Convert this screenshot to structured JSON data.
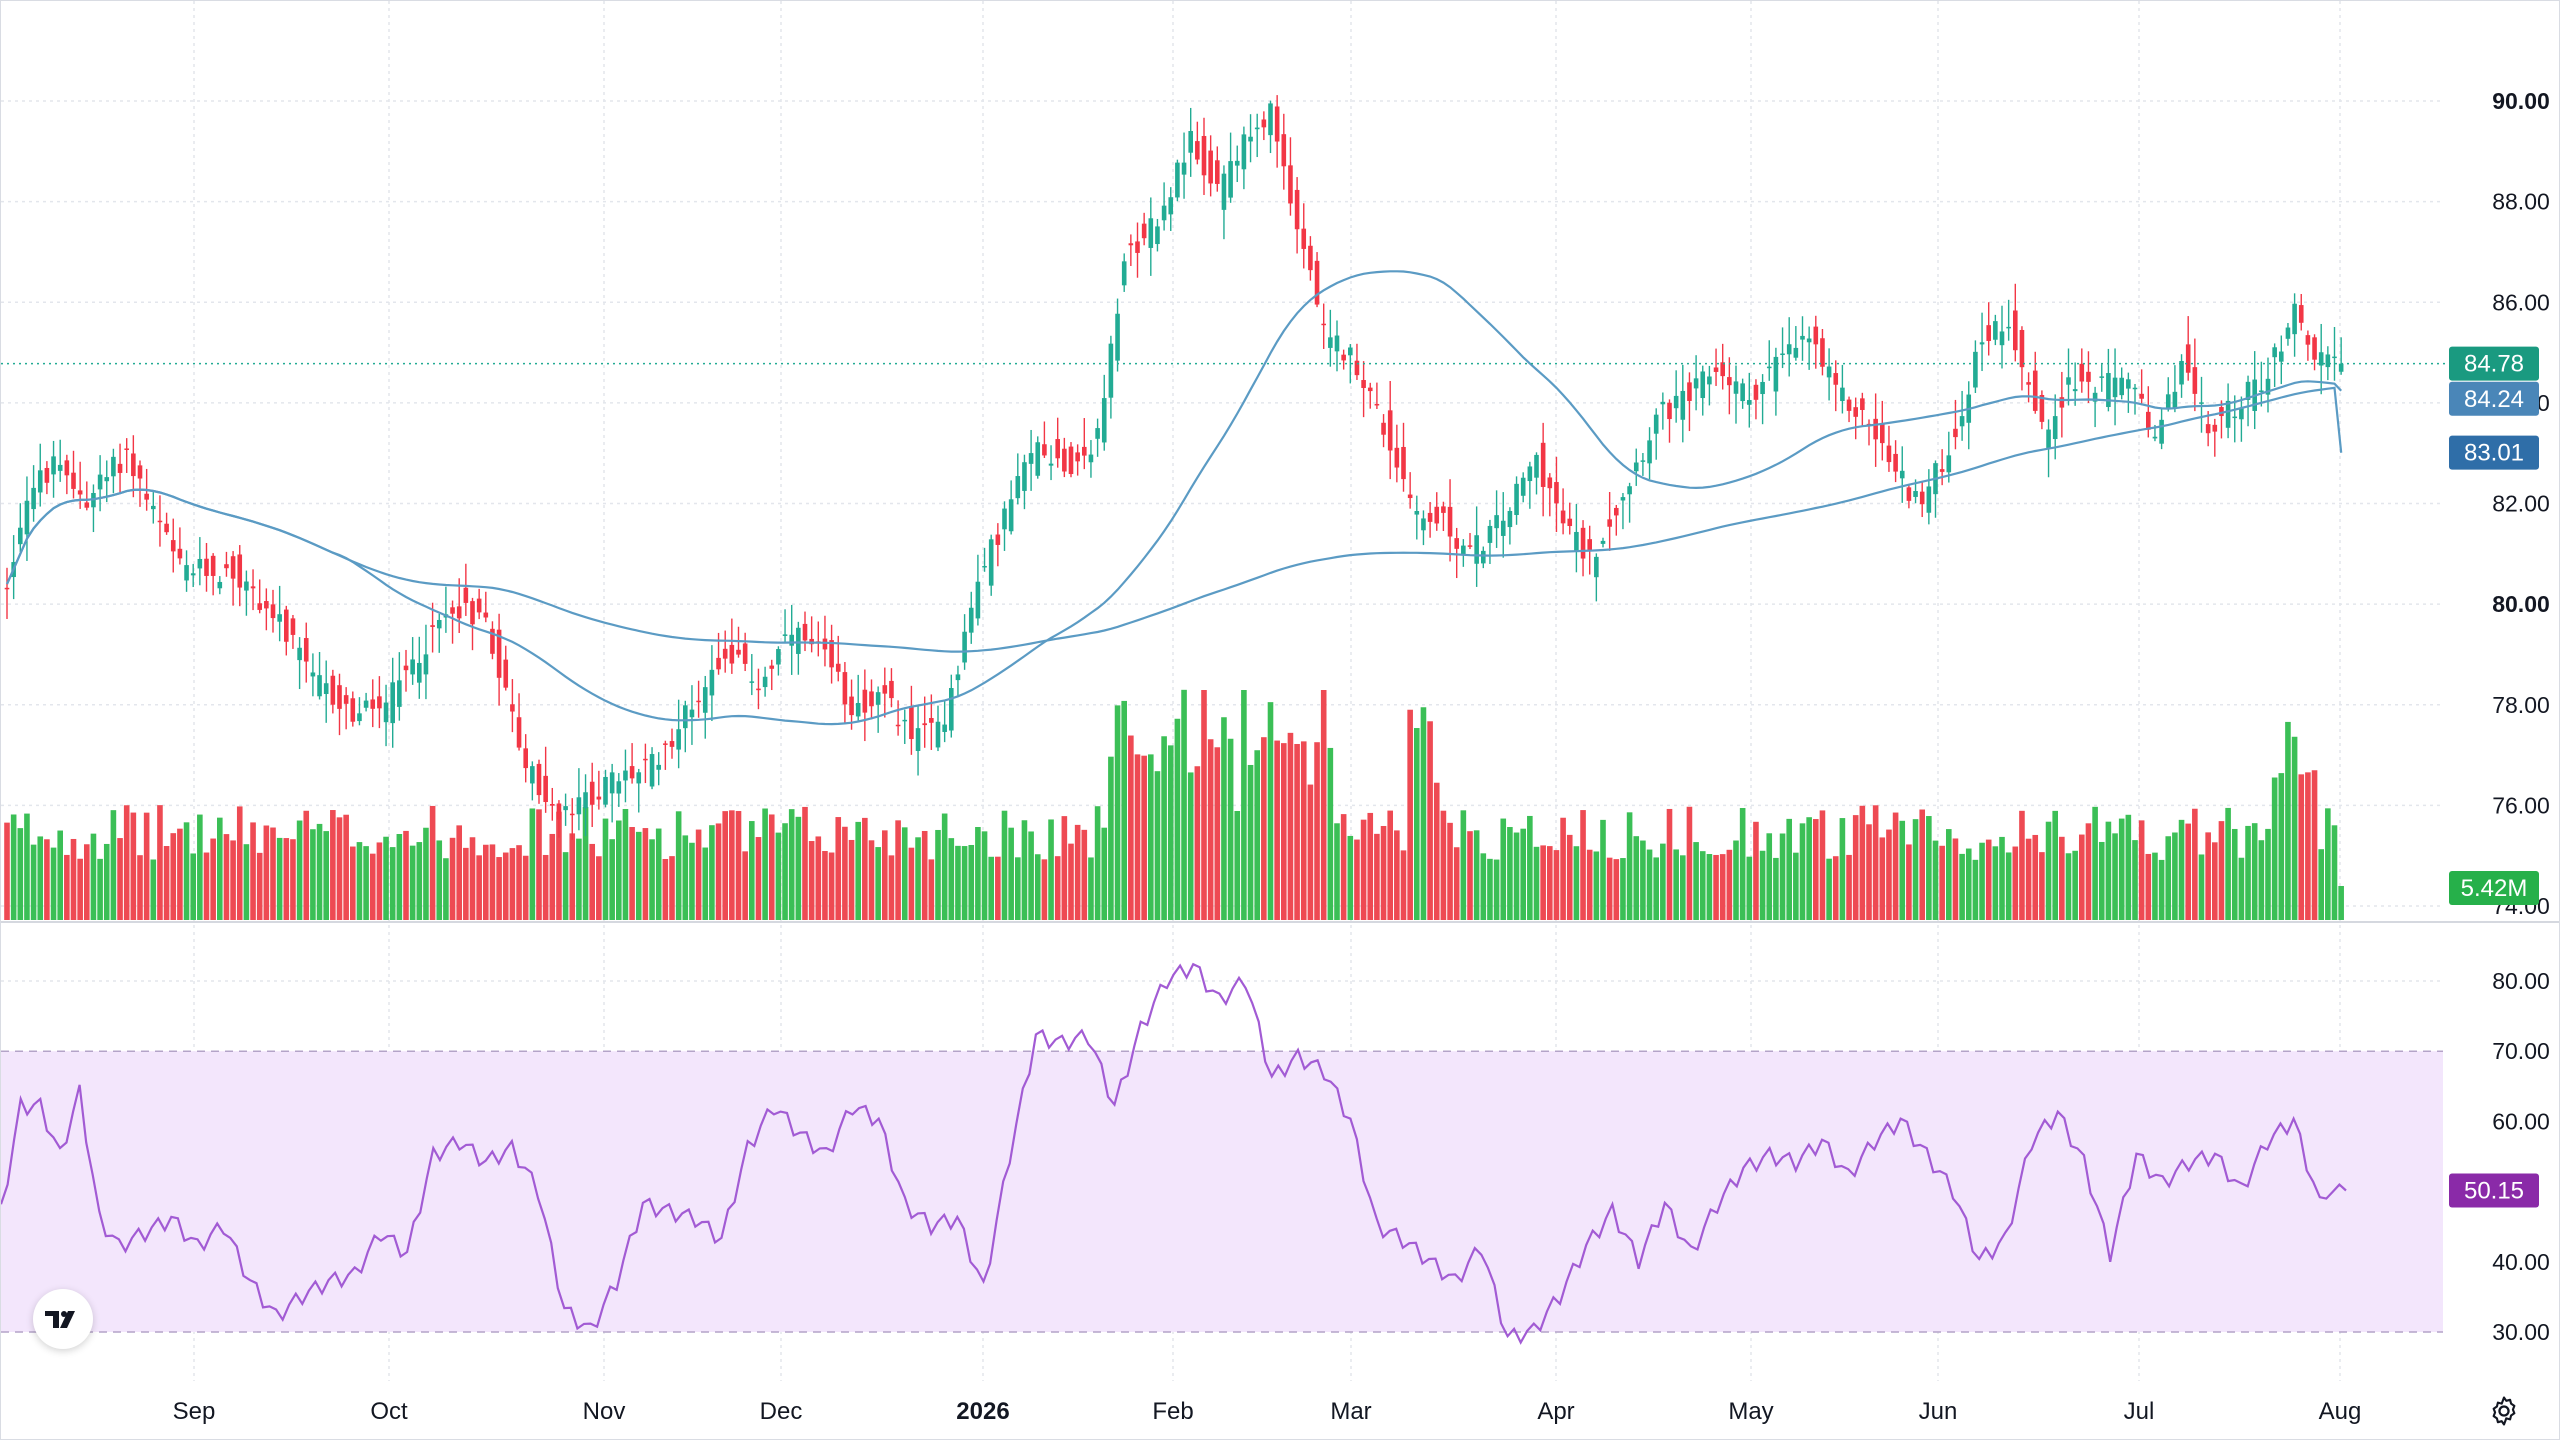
{
  "chart_data": {
    "type": "candlestick",
    "price_axis": {
      "ticks": [
        "74.00",
        "76.00",
        "78.00",
        "80.00",
        "82.00",
        "84.00",
        "86.00",
        "88.00",
        "90.00"
      ],
      "bold_ticks": [
        "80.00",
        "90.00"
      ],
      "range": [
        74,
        91.1
      ]
    },
    "rsi_axis": {
      "ticks": [
        "30.00",
        "40.00",
        "60.00",
        "70.00",
        "80.00"
      ],
      "range": [
        27.5,
        84
      ],
      "band": [
        30,
        70
      ]
    },
    "x_axis": {
      "labels": [
        "Sep",
        "Oct",
        "Nov",
        "Dec",
        "2026",
        "Feb",
        "Mar",
        "Apr",
        "May",
        "Jun",
        "Jul",
        "Aug"
      ],
      "bold_labels": [
        "2026"
      ]
    },
    "price_anchors": [
      [
        0,
        80.4
      ],
      [
        3,
        82.2
      ],
      [
        7,
        82.7
      ],
      [
        12,
        82.1
      ],
      [
        18,
        83.0
      ],
      [
        22,
        81.8
      ],
      [
        26,
        80.7
      ],
      [
        34,
        80.6
      ],
      [
        40,
        79.8
      ],
      [
        46,
        78.5
      ],
      [
        52,
        77.8
      ],
      [
        57,
        78.0
      ],
      [
        63,
        79.2
      ],
      [
        67,
        80.0
      ],
      [
        72,
        79.7
      ],
      [
        78,
        76.8
      ],
      [
        83,
        75.7
      ],
      [
        90,
        76.4
      ],
      [
        97,
        76.8
      ],
      [
        103,
        78.0
      ],
      [
        108,
        79.1
      ],
      [
        113,
        78.4
      ],
      [
        118,
        79.4
      ],
      [
        123,
        78.9
      ],
      [
        127,
        78.0
      ],
      [
        132,
        78.1
      ],
      [
        137,
        77.3
      ],
      [
        141,
        77.8
      ],
      [
        146,
        80.4
      ],
      [
        151,
        82.1
      ],
      [
        155,
        83.2
      ],
      [
        160,
        82.7
      ],
      [
        164,
        83.3
      ],
      [
        168,
        86.9
      ],
      [
        173,
        87.7
      ],
      [
        178,
        89.2
      ],
      [
        182,
        88.2
      ],
      [
        186,
        89.1
      ],
      [
        190,
        89.9
      ],
      [
        194,
        87.6
      ],
      [
        198,
        85.4
      ],
      [
        203,
        84.8
      ],
      [
        207,
        83.5
      ],
      [
        212,
        81.8
      ],
      [
        216,
        81.6
      ],
      [
        220,
        81.0
      ],
      [
        225,
        81.7
      ],
      [
        230,
        82.9
      ],
      [
        234,
        81.6
      ],
      [
        238,
        80.9
      ],
      [
        243,
        82.2
      ],
      [
        248,
        83.7
      ],
      [
        253,
        84.1
      ],
      [
        257,
        84.7
      ],
      [
        262,
        84.1
      ],
      [
        266,
        84.8
      ],
      [
        271,
        85.3
      ],
      [
        275,
        84.2
      ],
      [
        280,
        83.6
      ],
      [
        284,
        82.6
      ],
      [
        288,
        82.0
      ],
      [
        293,
        83.4
      ],
      [
        297,
        85.3
      ],
      [
        301,
        85.7
      ],
      [
        306,
        83.4
      ],
      [
        310,
        84.4
      ],
      [
        315,
        84.3
      ],
      [
        319,
        84.6
      ],
      [
        323,
        83.1
      ],
      [
        327,
        84.9
      ],
      [
        331,
        83.4
      ],
      [
        336,
        84.1
      ],
      [
        340,
        84.6
      ],
      [
        344,
        85.9
      ],
      [
        347,
        84.9
      ],
      [
        351,
        84.78
      ]
    ],
    "rsi_anchors": [
      [
        0,
        47
      ],
      [
        3,
        62
      ],
      [
        6,
        62
      ],
      [
        9,
        55
      ],
      [
        12,
        64
      ],
      [
        15,
        46
      ],
      [
        18,
        42
      ],
      [
        22,
        44
      ],
      [
        26,
        46
      ],
      [
        30,
        42
      ],
      [
        34,
        45
      ],
      [
        38,
        37
      ],
      [
        42,
        32
      ],
      [
        46,
        35
      ],
      [
        50,
        37
      ],
      [
        54,
        38
      ],
      [
        58,
        44
      ],
      [
        62,
        41
      ],
      [
        66,
        55
      ],
      [
        70,
        57
      ],
      [
        74,
        54
      ],
      [
        78,
        56
      ],
      [
        82,
        50
      ],
      [
        86,
        33
      ],
      [
        90,
        30
      ],
      [
        94,
        37
      ],
      [
        98,
        48
      ],
      [
        102,
        47
      ],
      [
        106,
        46
      ],
      [
        110,
        43
      ],
      [
        114,
        56
      ],
      [
        118,
        62
      ],
      [
        122,
        58
      ],
      [
        126,
        55
      ],
      [
        130,
        62
      ],
      [
        134,
        60
      ],
      [
        138,
        48
      ],
      [
        142,
        45
      ],
      [
        146,
        46
      ],
      [
        150,
        36
      ],
      [
        154,
        55
      ],
      [
        158,
        72
      ],
      [
        162,
        71
      ],
      [
        166,
        72
      ],
      [
        170,
        62
      ],
      [
        174,
        73
      ],
      [
        178,
        80
      ],
      [
        182,
        82
      ],
      [
        186,
        77
      ],
      [
        190,
        80
      ],
      [
        194,
        66
      ],
      [
        198,
        69
      ],
      [
        202,
        67
      ],
      [
        206,
        60
      ],
      [
        210,
        45
      ],
      [
        214,
        43
      ],
      [
        218,
        40
      ],
      [
        222,
        37
      ],
      [
        226,
        42
      ],
      [
        230,
        29
      ],
      [
        234,
        30
      ],
      [
        238,
        35
      ],
      [
        242,
        42
      ],
      [
        246,
        47
      ],
      [
        250,
        40
      ],
      [
        254,
        48
      ],
      [
        258,
        41
      ],
      [
        262,
        48
      ],
      [
        266,
        53
      ],
      [
        270,
        55
      ],
      [
        274,
        54
      ],
      [
        278,
        57
      ],
      [
        282,
        52
      ],
      [
        286,
        57
      ],
      [
        290,
        60
      ],
      [
        294,
        55
      ],
      [
        298,
        50
      ],
      [
        302,
        40
      ],
      [
        306,
        43
      ],
      [
        310,
        57
      ],
      [
        314,
        61
      ],
      [
        318,
        54
      ],
      [
        322,
        41
      ],
      [
        326,
        55
      ],
      [
        330,
        51
      ],
      [
        334,
        54
      ],
      [
        338,
        55
      ],
      [
        342,
        50
      ],
      [
        346,
        57
      ],
      [
        350,
        60
      ],
      [
        354,
        48
      ],
      [
        358,
        52
      ]
    ],
    "palette": {
      "up": "#22ab94",
      "down": "#f23645",
      "volume_up": "#3bbf56",
      "volume_down": "#ee4a53",
      "ma": "#5b9bc4",
      "rsi_line": "#a25bd4",
      "rsi_band": "#f3e6fc",
      "grid": "#e3e6ec"
    },
    "badges": {
      "last_price": "84.78",
      "ma_short": "84.24",
      "ma_long": "83.01",
      "volume": "5.42M",
      "rsi": "50.15"
    }
  }
}
